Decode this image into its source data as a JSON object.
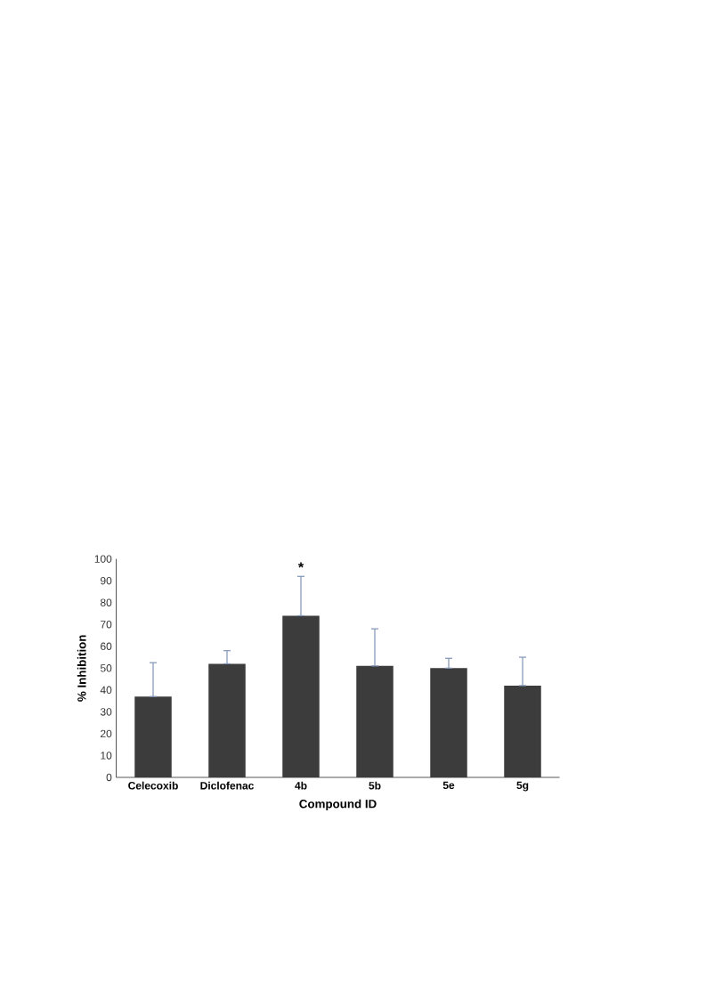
{
  "chart_data": {
    "type": "bar",
    "xlabel": "Compound ID",
    "ylabel": "% Inhibition",
    "categories": [
      "Celecoxib",
      "Diclofenac",
      "4b",
      "5b",
      "5e",
      "5g"
    ],
    "values": [
      37,
      52,
      74,
      51,
      50,
      42
    ],
    "errors": [
      [
        37,
        52.5
      ],
      [
        52,
        58
      ],
      [
        74,
        92
      ],
      [
        51,
        68
      ],
      [
        50,
        54.5
      ],
      [
        42,
        55
      ]
    ],
    "color": "#3c3c3c",
    "ylim": [
      0,
      100
    ],
    "yticks": [
      0,
      10,
      20,
      30,
      40,
      50,
      60,
      70,
      80,
      90,
      100
    ],
    "annotations": [
      "*"
    ]
  }
}
